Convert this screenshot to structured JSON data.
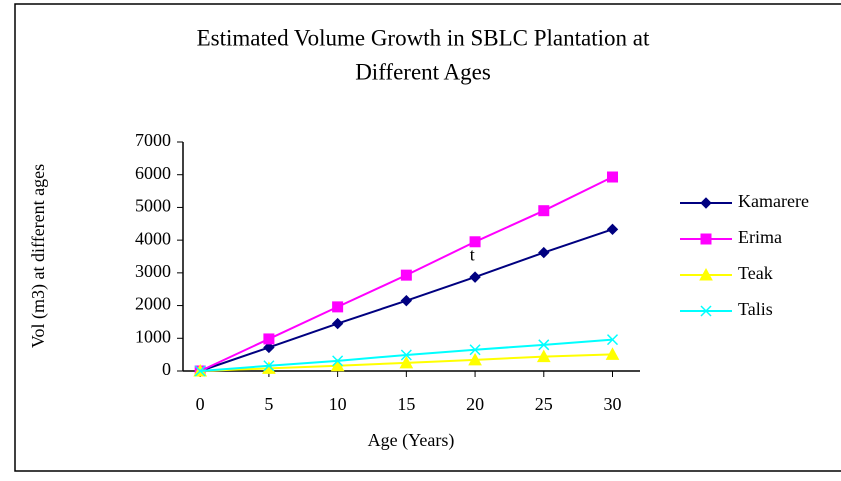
{
  "chart_data": {
    "type": "line",
    "title": [
      "Estimated Volume Growth in SBLC Plantation at",
      "Different Ages"
    ],
    "x_label": "Age (Years)",
    "y_label": "Vol (m3) at different ages",
    "annotation": {
      "text": "t",
      "x": 19.8,
      "y": 3500
    },
    "x": [
      0,
      5,
      10,
      15,
      20,
      25,
      30
    ],
    "xlim": [
      -1.25,
      32
    ],
    "xticks": [
      0,
      5,
      10,
      15,
      20,
      25,
      30
    ],
    "ylim": [
      0,
      7000
    ],
    "yticks": [
      0,
      1000,
      2000,
      3000,
      4000,
      5000,
      6000,
      7000
    ],
    "legend": "right",
    "series": [
      {
        "name": "Kamarere",
        "color": "#000080",
        "marker": "diamond",
        "values": [
          0,
          720,
          1450,
          2150,
          2870,
          3620,
          4330
        ]
      },
      {
        "name": "Erima",
        "color": "#ff00ff",
        "marker": "square",
        "values": [
          0,
          980,
          1960,
          2930,
          3950,
          4900,
          5930
        ]
      },
      {
        "name": "Teak",
        "color": "#ffff00",
        "marker": "triangle",
        "values": [
          0,
          80,
          160,
          250,
          340,
          440,
          510
        ]
      },
      {
        "name": "Talis",
        "color": "#00ffff",
        "marker": "x",
        "values": [
          0,
          160,
          310,
          490,
          650,
          800,
          960
        ]
      }
    ]
  }
}
